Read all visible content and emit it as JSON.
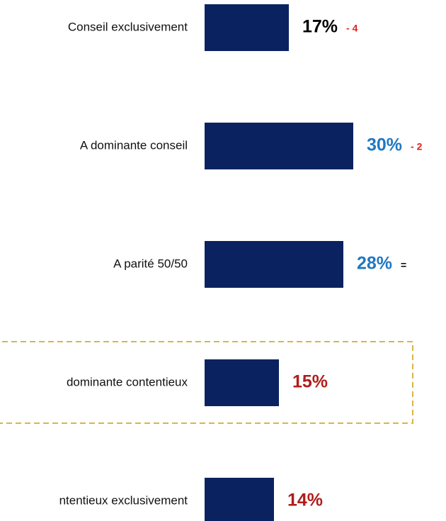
{
  "chart_data": {
    "type": "bar",
    "orientation": "horizontal",
    "categories": [
      "Conseil exclusivement",
      "A dominante conseil",
      "A parité 50/50",
      "dominante contentieux",
      "ntentieux exclusivement"
    ],
    "values": [
      17,
      30,
      28,
      15,
      14
    ],
    "value_labels": [
      "17%",
      "30%",
      "28%",
      "15%",
      "14%"
    ],
    "value_label_colors": [
      "#000000",
      "#1f78c1",
      "#1f78c1",
      "#b01c1c",
      "#b01c1c"
    ],
    "changes": [
      "- 4",
      "- 2",
      "=",
      null,
      null
    ],
    "change_colors": [
      "#e02020",
      "#e02020",
      "#000000",
      null,
      null
    ],
    "color": "#0b2260",
    "highlight_box_color": "#d9b54a"
  }
}
